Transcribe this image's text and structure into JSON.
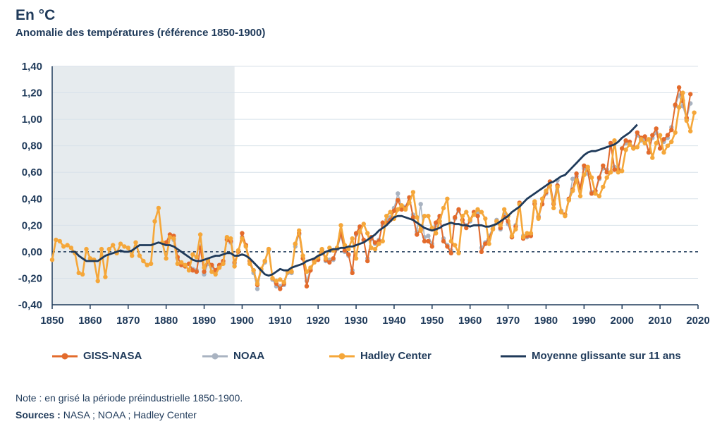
{
  "header": {
    "title": "En °C",
    "subtitle": "Anomalie des températures (référence 1850-1900)"
  },
  "footer": {
    "note": "Note : en grisé la période préindustrielle 1850-1900.",
    "sources_label": "Sources :",
    "sources_text": " NASA ; NOAA ; Hadley Center"
  },
  "colors": {
    "giss": "#e36b2c",
    "noaa": "#a9b3c1",
    "hadley": "#f5a73a",
    "mean": "#1f3a5a",
    "shade": "#e6ebee",
    "grid": "#d8e2ea",
    "axis": "#1f3a5a"
  },
  "chart_data": {
    "type": "line",
    "title": "Anomalie des températures (référence 1850-1900)",
    "xlim": [
      1850,
      2020
    ],
    "ylim": [
      -0.4,
      1.4
    ],
    "x_ticks": [
      1850,
      1860,
      1870,
      1880,
      1890,
      1900,
      1910,
      1920,
      1930,
      1940,
      1950,
      1960,
      1970,
      1980,
      1990,
      2000,
      2010,
      2020
    ],
    "y_ticks": [
      -0.4,
      -0.2,
      0.0,
      0.2,
      0.4,
      0.6,
      0.8,
      1.0,
      1.2,
      1.4
    ],
    "y_tick_labels": [
      "-0,40",
      "-0,20",
      "0,00",
      "0,20",
      "0,40",
      "0,60",
      "0,80",
      "1,00",
      "1,20",
      "1,40"
    ],
    "shaded_period": [
      1850,
      1898
    ],
    "zero_line": "dashed",
    "grid": "horizontal",
    "legend_position": "bottom",
    "series": [
      {
        "name": "Hadley Center",
        "start_year": 1850,
        "values": [
          -0.06,
          0.09,
          0.08,
          0.04,
          0.05,
          0.03,
          -0.01,
          -0.16,
          -0.17,
          0.02,
          -0.05,
          -0.06,
          -0.22,
          0.02,
          -0.19,
          0.02,
          0.05,
          -0.01,
          0.06,
          0.04,
          0.03,
          -0.03,
          0.07,
          -0.03,
          -0.07,
          -0.1,
          -0.09,
          0.23,
          0.33,
          0.07,
          -0.05,
          0.11,
          0.1,
          -0.09,
          -0.08,
          -0.1,
          -0.14,
          -0.02,
          -0.04,
          0.13,
          -0.12,
          -0.06,
          -0.15,
          -0.17,
          -0.12,
          -0.09,
          0.11,
          0.1,
          -0.11,
          0.01,
          0.1,
          0.04,
          -0.09,
          -0.14,
          -0.24,
          -0.13,
          -0.07,
          0.02,
          -0.2,
          -0.22,
          -0.21,
          -0.23,
          -0.15,
          -0.15,
          0.06,
          0.16,
          -0.03,
          -0.15,
          -0.12,
          -0.08,
          -0.04,
          0.02,
          -0.05,
          0.03,
          0.01,
          0.03,
          0.2,
          0.05,
          0.02,
          0.1,
          -0.05,
          0.15,
          0.21,
          0.14,
          0.03,
          0.02,
          0.06,
          0.08,
          0.27,
          0.3,
          0.25,
          0.32,
          0.35,
          0.32,
          0.37,
          0.45,
          0.26,
          0.16,
          0.27,
          0.27,
          0.18,
          0.14,
          0.23,
          0.33,
          0.4,
          0.08,
          0.05,
          -0.01,
          0.27,
          0.3,
          0.24,
          0.28,
          0.32,
          0.3,
          0.25,
          0.06,
          0.17,
          0.23,
          0.2,
          0.32,
          0.27,
          0.12,
          0.17,
          0.36,
          0.11,
          0.14,
          0.14,
          0.38,
          0.25,
          0.4,
          0.46,
          0.5,
          0.33,
          0.49,
          0.3,
          0.27,
          0.39,
          0.46,
          0.54,
          0.42,
          0.58,
          0.64,
          0.56,
          0.44,
          0.42,
          0.49,
          0.56,
          0.6,
          0.84,
          0.6,
          0.61,
          0.77,
          0.81,
          0.78,
          0.79,
          0.85,
          0.82,
          0.85,
          0.71,
          0.82,
          0.88,
          0.75,
          0.8,
          0.83,
          0.9,
          1.09,
          1.2,
          0.99,
          0.91,
          1.05
        ]
      },
      {
        "name": "GISS-NASA",
        "start_year": 1880,
        "values": [
          0.07,
          0.13,
          0.12,
          -0.04,
          -0.1,
          -0.11,
          -0.09,
          -0.14,
          -0.15,
          0.03,
          -0.15,
          -0.07,
          -0.1,
          -0.14,
          -0.1,
          -0.07,
          0.09,
          0.08,
          -0.08,
          0.0,
          0.14,
          0.05,
          -0.07,
          -0.14,
          -0.25,
          -0.13,
          -0.07,
          0.02,
          -0.2,
          -0.24,
          -0.28,
          -0.24,
          -0.15,
          -0.15,
          0.06,
          0.14,
          -0.05,
          -0.26,
          -0.14,
          -0.07,
          -0.06,
          0.01,
          -0.06,
          -0.08,
          -0.05,
          0.03,
          0.14,
          0.01,
          -0.02,
          -0.16,
          0.14,
          0.19,
          0.09,
          -0.07,
          0.11,
          0.07,
          0.08,
          0.22,
          0.22,
          0.24,
          0.31,
          0.39,
          0.32,
          0.33,
          0.41,
          0.26,
          0.13,
          0.17,
          0.08,
          0.08,
          0.04,
          0.22,
          0.27,
          0.08,
          0.04,
          -0.01,
          0.26,
          0.32,
          0.24,
          0.18,
          0.24,
          0.3,
          0.27,
          0.0,
          0.06,
          0.1,
          0.17,
          0.23,
          0.18,
          0.26,
          0.23,
          0.11,
          0.19,
          0.37,
          0.1,
          0.12,
          0.12,
          0.36,
          0.26,
          0.36,
          0.45,
          0.53,
          0.36,
          0.5,
          0.3,
          0.28,
          0.4,
          0.47,
          0.59,
          0.48,
          0.65,
          0.62,
          0.44,
          0.46,
          0.56,
          0.65,
          0.6,
          0.82,
          0.62,
          0.62,
          0.78,
          0.84,
          0.83,
          0.78,
          0.9,
          0.86,
          0.87,
          0.75,
          0.88,
          0.93,
          0.78,
          0.85,
          0.88,
          0.92,
          1.11,
          1.24,
          1.14,
          1.01,
          1.19
        ]
      },
      {
        "name": "NOAA",
        "start_year": 1880,
        "values": [
          0.06,
          0.11,
          0.09,
          -0.05,
          -0.09,
          -0.1,
          -0.09,
          -0.13,
          -0.14,
          0.04,
          -0.17,
          -0.09,
          -0.11,
          -0.15,
          -0.11,
          -0.08,
          0.1,
          0.07,
          -0.09,
          0.01,
          0.11,
          0.04,
          -0.09,
          -0.16,
          -0.28,
          -0.14,
          -0.08,
          0.01,
          -0.21,
          -0.26,
          -0.26,
          -0.25,
          -0.16,
          -0.16,
          0.04,
          0.13,
          -0.05,
          -0.22,
          -0.13,
          -0.07,
          -0.05,
          0.01,
          -0.07,
          -0.06,
          -0.06,
          0.02,
          0.12,
          0.0,
          -0.03,
          -0.14,
          0.13,
          0.18,
          0.08,
          -0.05,
          0.1,
          0.06,
          0.09,
          0.2,
          0.24,
          0.26,
          0.33,
          0.44,
          0.34,
          0.34,
          0.41,
          0.28,
          0.15,
          0.36,
          0.11,
          0.12,
          0.06,
          0.2,
          0.26,
          0.1,
          0.05,
          0.01,
          0.25,
          0.31,
          0.24,
          0.2,
          0.23,
          0.28,
          0.29,
          0.03,
          0.07,
          0.12,
          0.18,
          0.24,
          0.17,
          0.28,
          0.21,
          0.11,
          0.2,
          0.36,
          0.12,
          0.11,
          0.13,
          0.37,
          0.27,
          0.4,
          0.44,
          0.5,
          0.37,
          0.54,
          0.31,
          0.28,
          0.39,
          0.55,
          0.57,
          0.48,
          0.63,
          0.59,
          0.45,
          0.44,
          0.55,
          0.63,
          0.62,
          0.82,
          0.64,
          0.63,
          0.78,
          0.82,
          0.81,
          0.79,
          0.88,
          0.84,
          0.85,
          0.75,
          0.86,
          0.9,
          0.78,
          0.83,
          0.86,
          0.94,
          1.1,
          1.18,
          1.1,
          1.0,
          1.12
        ]
      },
      {
        "name": "Moyenne glissante sur 11 ans",
        "start_year": 1855,
        "values": [
          0.0,
          0.0,
          -0.03,
          -0.05,
          -0.07,
          -0.07,
          -0.07,
          -0.07,
          -0.05,
          -0.03,
          -0.02,
          -0.01,
          0.0,
          0.01,
          0.0,
          0.0,
          0.01,
          0.03,
          0.05,
          0.05,
          0.05,
          0.05,
          0.06,
          0.07,
          0.06,
          0.05,
          0.05,
          0.04,
          0.02,
          0.0,
          -0.02,
          -0.04,
          -0.06,
          -0.07,
          -0.07,
          -0.06,
          -0.05,
          -0.04,
          -0.03,
          -0.03,
          -0.02,
          -0.01,
          -0.01,
          -0.03,
          -0.03,
          -0.02,
          -0.03,
          -0.05,
          -0.08,
          -0.11,
          -0.14,
          -0.17,
          -0.18,
          -0.17,
          -0.15,
          -0.13,
          -0.14,
          -0.14,
          -0.12,
          -0.11,
          -0.1,
          -0.09,
          -0.07,
          -0.06,
          -0.05,
          -0.03,
          -0.02,
          0.0,
          0.01,
          0.02,
          0.02,
          0.03,
          0.03,
          0.04,
          0.04,
          0.05,
          0.06,
          0.07,
          0.09,
          0.11,
          0.13,
          0.16,
          0.18,
          0.2,
          0.23,
          0.26,
          0.27,
          0.27,
          0.26,
          0.25,
          0.24,
          0.22,
          0.2,
          0.18,
          0.17,
          0.16,
          0.17,
          0.18,
          0.2,
          0.21,
          0.22,
          0.21,
          0.21,
          0.2,
          0.2,
          0.19,
          0.2,
          0.2,
          0.2,
          0.19,
          0.19,
          0.2,
          0.21,
          0.23,
          0.25,
          0.27,
          0.3,
          0.32,
          0.34,
          0.37,
          0.4,
          0.42,
          0.44,
          0.46,
          0.48,
          0.5,
          0.52,
          0.53,
          0.55,
          0.57,
          0.58,
          0.61,
          0.64,
          0.67,
          0.7,
          0.73,
          0.75,
          0.76,
          0.76,
          0.77,
          0.78,
          0.79,
          0.8,
          0.81,
          0.83,
          0.86,
          0.88,
          0.9,
          0.93,
          0.96
        ]
      }
    ]
  },
  "legend": {
    "giss": "GISS-NASA",
    "noaa": "NOAA",
    "hadley": "Hadley Center",
    "mean": "Moyenne glissante sur 11 ans"
  }
}
